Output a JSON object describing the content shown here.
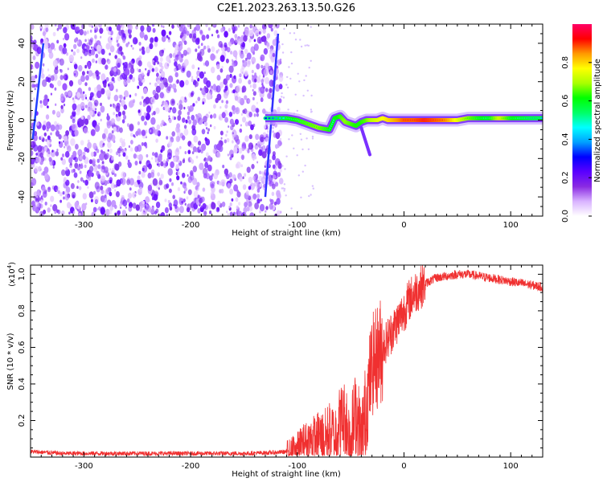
{
  "title": "C2E1.2023.263.13.50.G26",
  "chart_data": [
    {
      "type": "heatmap",
      "xlabel": "Height of straight line (km)",
      "ylabel": "Frequency (Hz)",
      "xlim": [
        -350,
        130
      ],
      "ylim": [
        -50,
        50
      ],
      "xticks": [
        -300,
        -200,
        -100,
        0,
        100
      ],
      "xtick_labels": [
        "-300",
        "-200",
        "-100",
        "0",
        "100"
      ],
      "yticks": [
        -40,
        -20,
        0,
        20,
        40
      ],
      "ytick_labels": [
        "-40",
        "-20",
        "0",
        "20",
        "40"
      ],
      "noise_region_x": [
        -350,
        -115
      ],
      "signal_track": {
        "x": [
          -130,
          -110,
          -100,
          -90,
          -80,
          -70,
          -65,
          -60,
          -55,
          -50,
          -45,
          -40,
          -35,
          -30,
          -25,
          -20,
          -15,
          -10,
          -5,
          0,
          10,
          20,
          30,
          40,
          50,
          60,
          70,
          80,
          90,
          100,
          110,
          120,
          130
        ],
        "y": [
          1,
          1,
          0,
          -2,
          -4,
          -5,
          1,
          2,
          -1,
          -2,
          -3,
          -1,
          0,
          0,
          0,
          1,
          0,
          0,
          0,
          0,
          0,
          0,
          0,
          0,
          0,
          1,
          1,
          1,
          1,
          1,
          1,
          1,
          1
        ],
        "amplitude": [
          0.3,
          0.45,
          0.5,
          0.55,
          0.6,
          0.5,
          0.45,
          0.5,
          0.6,
          0.55,
          0.5,
          0.5,
          0.55,
          0.65,
          0.7,
          0.75,
          0.8,
          0.85,
          0.9,
          0.95,
          0.95,
          1.0,
          0.95,
          0.9,
          0.75,
          0.6,
          0.5,
          0.45,
          0.7,
          0.5,
          0.45,
          0.4,
          0.4
        ]
      },
      "colorbar": {
        "label": "Normalized spectral amplitude",
        "range": [
          0,
          1
        ],
        "ticks": [
          0.0,
          0.2,
          0.4,
          0.6,
          0.8
        ],
        "tick_labels": [
          "0.0",
          "0.2",
          "0.4",
          "0.6",
          "0.8"
        ],
        "colors": [
          "#ffffff",
          "#d9b3ff",
          "#8a2be2",
          "#5a00ff",
          "#0000ff",
          "#00a0ff",
          "#00ffff",
          "#00ff66",
          "#00ff00",
          "#aaff00",
          "#ffff00",
          "#ff9900",
          "#ff0000",
          "#ff0066"
        ]
      },
      "grid": false
    },
    {
      "type": "line",
      "xlabel": "Height of straight line (km)",
      "ylabel": "SNR (10 * v/v)",
      "y_multiplier": "(x10",
      "y_multiplier_exp": "4",
      "y_multiplier_close": ")",
      "xlim": [
        -350,
        130
      ],
      "ylim": [
        0,
        1.05
      ],
      "xticks": [
        -300,
        -200,
        -100,
        0,
        100
      ],
      "xtick_labels": [
        "-300",
        "-200",
        "-100",
        "0",
        "100"
      ],
      "yticks": [
        0.2,
        0.4,
        0.6,
        0.8,
        1.0
      ],
      "ytick_labels": [
        "0.2",
        "0.4",
        "0.6",
        "0.8",
        "1.0"
      ],
      "line_color": "#f03030",
      "x": [
        -350,
        -320,
        -300,
        -250,
        -200,
        -150,
        -120,
        -110,
        -100,
        -95,
        -90,
        -85,
        -80,
        -75,
        -70,
        -65,
        -60,
        -55,
        -50,
        -45,
        -40,
        -35,
        -30,
        -25,
        -20,
        -15,
        -10,
        -5,
        0,
        5,
        10,
        20,
        30,
        40,
        50,
        60,
        70,
        80,
        90,
        100,
        110,
        120,
        130
      ],
      "y": [
        0.03,
        0.02,
        0.02,
        0.02,
        0.02,
        0.02,
        0.025,
        0.03,
        0.05,
        0.08,
        0.09,
        0.1,
        0.12,
        0.1,
        0.14,
        0.12,
        0.2,
        0.22,
        0.1,
        0.25,
        0.08,
        0.3,
        0.5,
        0.55,
        0.6,
        0.65,
        0.7,
        0.75,
        0.8,
        0.86,
        0.9,
        0.95,
        0.98,
        0.99,
        1.0,
        1.0,
        0.99,
        0.98,
        0.97,
        0.96,
        0.95,
        0.94,
        0.93
      ]
    }
  ]
}
